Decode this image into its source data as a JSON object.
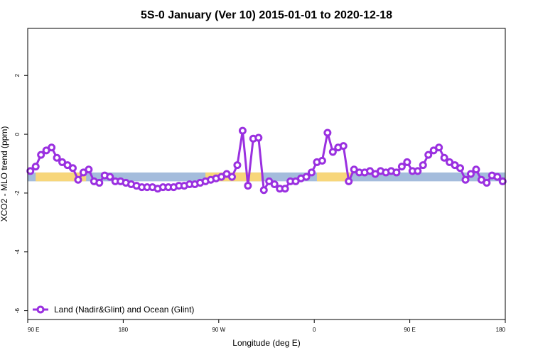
{
  "chart_data": {
    "type": "line",
    "title": "5S-0 January (Ver 10)   2015-01-01 to 2020-12-18",
    "xlabel": "Longitude (deg E)",
    "ylabel": "XCO2 - MLO trend (ppm)",
    "xlim": [
      90,
      450
    ],
    "ylim": [
      -6.3,
      3.6
    ],
    "x_tick_values": [
      90,
      162,
      234,
      306,
      378,
      450
    ],
    "x_tick_labels": [
      "90 E",
      "180",
      "90 W",
      "0",
      "90 E",
      "180"
    ],
    "y_ticks": [
      -6,
      -4,
      -2,
      0,
      2
    ],
    "grid": false,
    "legend_position": "bottom-left",
    "band": {
      "y_low": -1.6,
      "y_high": -1.3,
      "ocean_color": "#a4bcdc",
      "land_color": "#f7d67a"
    },
    "land_segments": [
      [
        96,
        134
      ],
      [
        224,
        266
      ],
      [
        309,
        323
      ],
      [
        308,
        334
      ]
    ],
    "series": [
      {
        "name": "Land (Nadir&Glint) and Ocean (Glint)",
        "color": "#9a30e0",
        "x": [
          92,
          96,
          100,
          104,
          108,
          112,
          116,
          120,
          124,
          128,
          132,
          136,
          140,
          144,
          148,
          152,
          156,
          160,
          164,
          168,
          172,
          176,
          180,
          184,
          188,
          192,
          196,
          200,
          204,
          208,
          212,
          216,
          220,
          224,
          228,
          232,
          236,
          240,
          244,
          248,
          252,
          256,
          260,
          264,
          268,
          272,
          276,
          280,
          284,
          288,
          292,
          296,
          300,
          304,
          308,
          312,
          316,
          320,
          324,
          328,
          332,
          336,
          340,
          344,
          348,
          352,
          356,
          360,
          364,
          368,
          372,
          376,
          380,
          384,
          388,
          392,
          396,
          400,
          404,
          408,
          412,
          416,
          420,
          424,
          428,
          432,
          436,
          440,
          444,
          448
        ],
        "y": [
          -1.25,
          -1.1,
          -0.7,
          -0.55,
          -0.45,
          -0.8,
          -0.95,
          -1.05,
          -1.15,
          -1.55,
          -1.3,
          -1.2,
          -1.6,
          -1.65,
          -1.4,
          -1.45,
          -1.6,
          -1.6,
          -1.65,
          -1.7,
          -1.75,
          -1.8,
          -1.8,
          -1.8,
          -1.85,
          -1.8,
          -1.8,
          -1.8,
          -1.75,
          -1.75,
          -1.7,
          -1.7,
          -1.65,
          -1.6,
          -1.55,
          -1.5,
          -1.45,
          -1.35,
          -1.45,
          -1.05,
          0.12,
          -1.75,
          -0.15,
          -0.12,
          -1.9,
          -1.6,
          -1.7,
          -1.85,
          -1.85,
          -1.6,
          -1.6,
          -1.5,
          -1.45,
          -1.3,
          -0.95,
          -0.9,
          0.05,
          -0.6,
          -0.45,
          -0.4,
          -1.6,
          -1.2,
          -1.3,
          -1.3,
          -1.25,
          -1.35,
          -1.25,
          -1.3,
          -1.25,
          -1.3,
          -1.1,
          -0.95,
          -1.25,
          -1.25,
          -1.05,
          -0.7,
          -0.55,
          -0.45,
          -0.8,
          -0.95,
          -1.05,
          -1.15,
          -1.55,
          -1.35,
          -1.2,
          -1.55,
          -1.65,
          -1.4,
          -1.45,
          -1.6
        ]
      }
    ]
  }
}
